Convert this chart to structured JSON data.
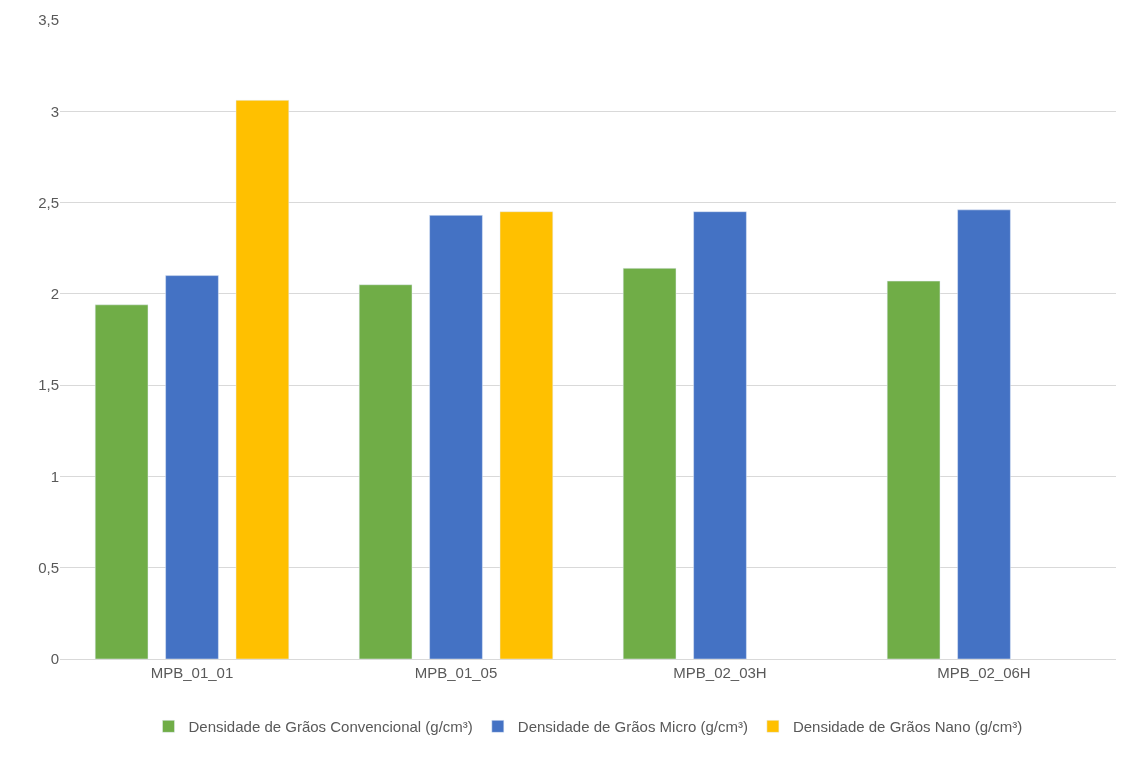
{
  "chart_data": {
    "type": "bar",
    "categories": [
      "MPB_01_01",
      "MPB_01_05",
      "MPB_02_03H",
      "MPB_02_06H"
    ],
    "series": [
      {
        "name": "Densidade de Grãos Convencional (g/cm³)",
        "color": "#70ad47",
        "values": [
          1.94,
          2.05,
          2.14,
          2.07
        ]
      },
      {
        "name": "Densidade de Grãos Micro (g/cm³)",
        "color": "#4472c4",
        "values": [
          2.1,
          2.43,
          2.45,
          2.46
        ]
      },
      {
        "name": "Densidade de Grãos Nano (g/cm³)",
        "color": "#ffc000",
        "values": [
          3.06,
          2.45,
          null,
          null
        ]
      }
    ],
    "ylim": [
      0,
      3.5
    ],
    "yticks": [
      0,
      {
        "value": 0.5,
        "label": "0,5"
      },
      1,
      {
        "value": 1.5,
        "label": "1,5"
      },
      2,
      {
        "value": 2.5,
        "label": "2,5"
      },
      3,
      {
        "value": 3.5,
        "label": "3,5"
      }
    ],
    "grid": "y",
    "legend": "bottom"
  }
}
